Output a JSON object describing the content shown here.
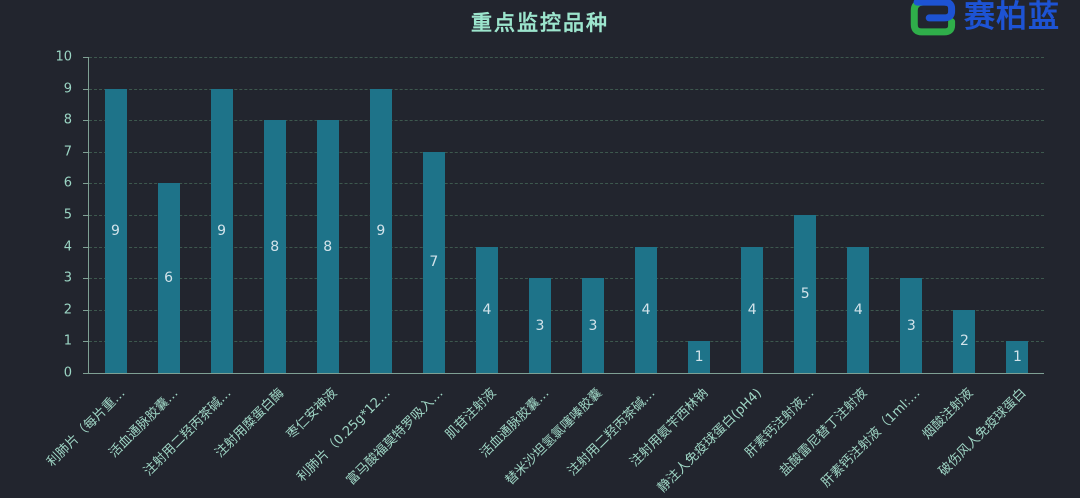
{
  "header": {
    "title": "重点监控品种"
  },
  "logo": {
    "brand_text": "赛柏蓝",
    "icon": "saibailan-s-logo",
    "blue": "#1d53d4",
    "green": "#2fae4a"
  },
  "chart_data": {
    "type": "bar",
    "title": "重点监控品种",
    "categories": [
      "利肺片（每片重…",
      "活血通脉胶囊…",
      "注射用二羟丙茶碱…",
      "注射用糜蛋白酶",
      "枣仁安神液",
      "利肺片（0.25g*12…",
      "富马酸福莫特罗吸入…",
      "肌苷注射液",
      "活血通脉胶囊…",
      "替米沙坦氢氯噻嗪胶囊",
      "注射用二羟丙茶碱…",
      "注射用氨苄西林钠",
      "静注人免疫球蛋白(pH4)",
      "肝素钙注射液…",
      "盐酸雷尼替丁注射液",
      "肝素钙注射液（1ml:…",
      "烟酸注射液",
      "破伤风人免疫球蛋白"
    ],
    "values": [
      9,
      6,
      9,
      8,
      8,
      9,
      7,
      4,
      3,
      3,
      4,
      1,
      4,
      5,
      4,
      3,
      2,
      1
    ],
    "xlabel": "",
    "ylabel": "",
    "ylim": [
      0,
      10
    ],
    "yticks": [
      0,
      1,
      2,
      3,
      4,
      5,
      6,
      7,
      8,
      9,
      10
    ],
    "x_label_rotation_deg": 45,
    "grid": "horizontal-dashed",
    "value_label_position": "inside-middle",
    "legend": "none",
    "colors": {
      "background": "#22252e",
      "bar": "#1e7389",
      "axis_line": "#7fa094",
      "grid_line": "#3d584e",
      "tick_label": "#9bd5c4",
      "x_label": "#9fd6c5",
      "value_label": "#d2e3ea",
      "title": "#9ce5cd"
    }
  }
}
